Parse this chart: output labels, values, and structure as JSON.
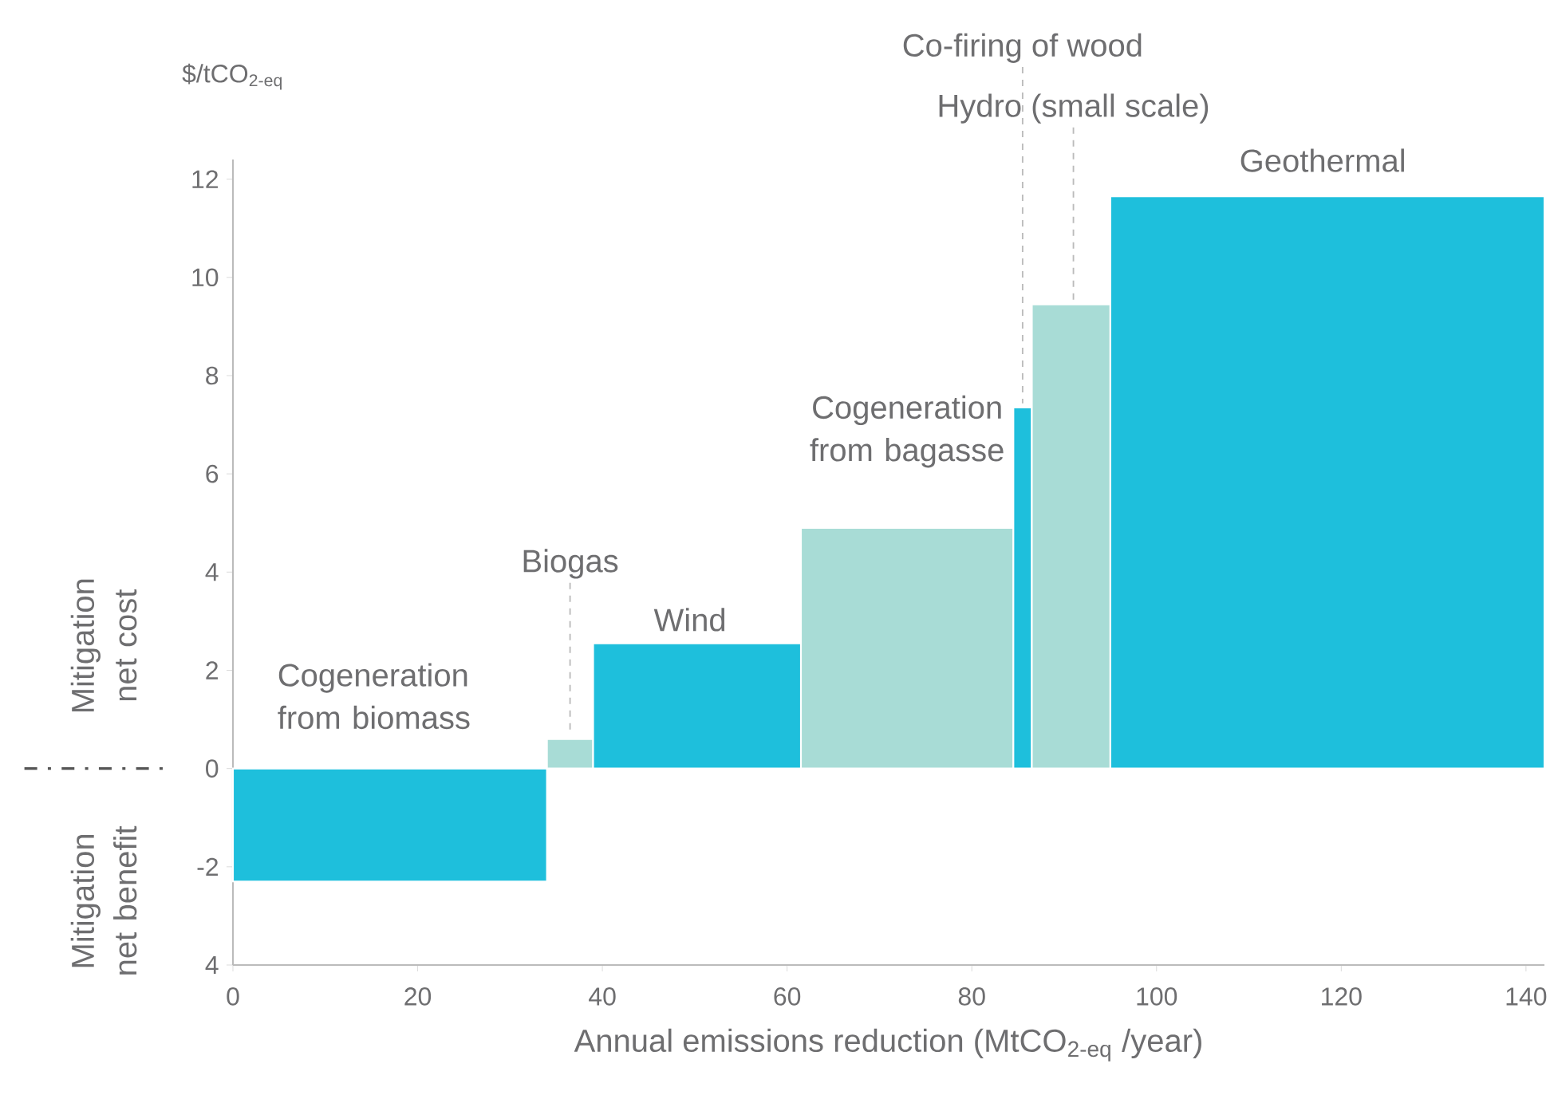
{
  "chart_data": {
    "type": "histogram",
    "ylabel": "$/tCO$_{2-eq}$",
    "xlabel": "Annual emissions reduction (MtCO$_{2-eq}$ /year)",
    "bins": [
      0,
      34,
      39,
      61.5,
      84.5,
      86.5,
      95,
      142
    ],
    "values": [
      -2.3,
      0.6,
      2.55,
      4.9,
      7.35,
      9.45,
      11.65
    ],
    "colors": [
      "#1ebfdc",
      "#a8dcd6",
      "#1ebfdc",
      "#a8dcd6",
      "#1ebfdc",
      "#a8dcd6",
      "#1ebfdc"
    ],
    "xlim": [
      0,
      142
    ],
    "ylim": [
      -4,
      12.4
    ],
    "xticks": [
      0,
      20,
      40,
      60,
      80,
      100,
      120,
      140
    ],
    "yticks": [
      {
        "value": -4,
        "label": "4"
      },
      -2,
      0,
      2,
      4,
      6,
      8,
      10,
      12
    ],
    "grid": false,
    "annotations": [
      "Cogeneration from biomass",
      {
        "text": "Biogas",
        "x": 36.5,
        "y": 0.6
      },
      "Wind",
      "Cogeneration from bagasse",
      {
        "text": "Co-firing of wood",
        "x": 85.5,
        "y": 7.35
      },
      {
        "text": "Hydro (small scale)",
        "x": 91,
        "y": 9.45
      },
      "Geothermal",
      "Mitigation net cost",
      "Mitigation net benefit"
    ]
  }
}
